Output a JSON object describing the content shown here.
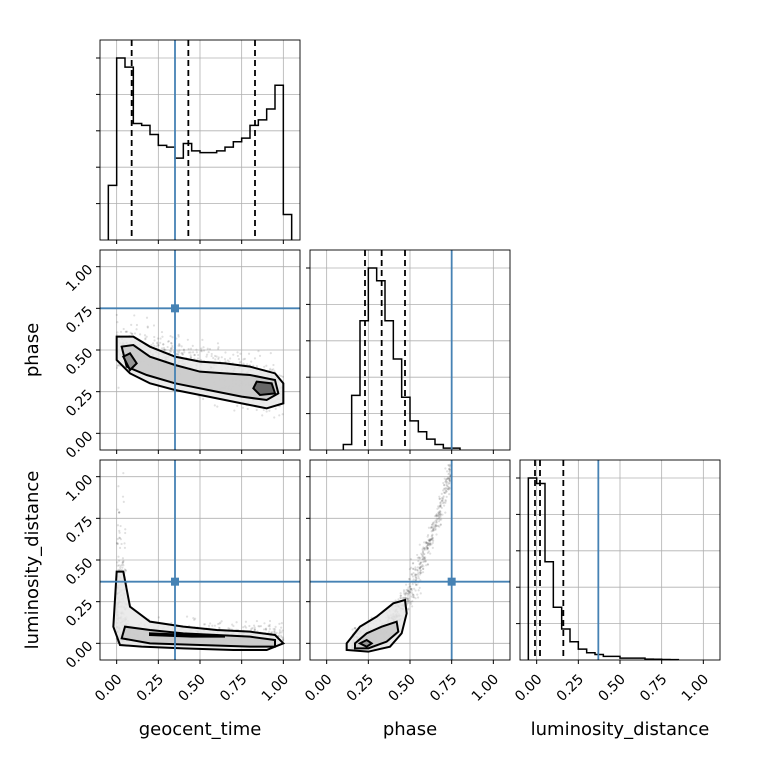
{
  "chart_data": {
    "type": "corner",
    "parameters": [
      "geocent_time",
      "phase",
      "luminosity_distance"
    ],
    "axis_range": [
      -0.1,
      1.1
    ],
    "tick_labels": [
      "0.00",
      "0.25",
      "0.50",
      "0.75",
      "1.00"
    ],
    "grid": true,
    "colors": {
      "truth": "#4682b4",
      "hist": "#000000",
      "scatter": "#000000"
    },
    "truths": {
      "geocent_time": 0.35,
      "phase": 0.75,
      "luminosity_distance": 0.37
    },
    "quantiles": {
      "geocent_time": [
        0.09,
        0.43,
        0.83
      ],
      "phase": [
        0.23,
        0.33,
        0.47
      ],
      "luminosity_distance": [
        -0.01,
        0.02,
        0.16
      ]
    },
    "histograms": {
      "geocent_time": {
        "edges": [
          -0.05,
          0.0,
          0.05,
          0.1,
          0.15,
          0.2,
          0.25,
          0.3,
          0.35,
          0.4,
          0.45,
          0.5,
          0.55,
          0.6,
          0.65,
          0.7,
          0.75,
          0.8,
          0.85,
          0.9,
          0.95,
          1.0,
          1.05
        ],
        "counts": [
          0.3,
          1.0,
          0.95,
          0.64,
          0.63,
          0.58,
          0.52,
          0.51,
          0.45,
          0.53,
          0.49,
          0.48,
          0.48,
          0.49,
          0.51,
          0.54,
          0.56,
          0.63,
          0.66,
          0.72,
          0.85,
          0.14
        ]
      },
      "phase": {
        "edges": [
          0.1,
          0.15,
          0.2,
          0.25,
          0.3,
          0.35,
          0.4,
          0.45,
          0.5,
          0.55,
          0.6,
          0.65,
          0.7,
          0.75,
          0.8
        ],
        "counts": [
          0.03,
          0.3,
          0.71,
          1.0,
          0.93,
          0.71,
          0.5,
          0.29,
          0.16,
          0.1,
          0.06,
          0.03,
          0.01,
          0.01
        ]
      },
      "luminosity_distance": {
        "edges": [
          -0.05,
          0.0,
          0.05,
          0.1,
          0.15,
          0.2,
          0.25,
          0.3,
          0.35,
          0.4,
          0.45,
          0.5,
          0.55,
          0.6,
          0.65,
          0.7,
          0.75,
          0.8,
          0.85
        ],
        "counts": [
          1.0,
          0.97,
          0.54,
          0.29,
          0.17,
          0.1,
          0.06,
          0.04,
          0.03,
          0.02,
          0.02,
          0.01,
          0.01,
          0.01,
          0.005,
          0.004,
          0.003,
          0.002
        ]
      }
    },
    "contours": {
      "phase_vs_geocent_time": [
        [
          [
            0.0,
            0.58
          ],
          [
            0.1,
            0.58
          ],
          [
            0.2,
            0.52
          ],
          [
            0.35,
            0.46
          ],
          [
            0.5,
            0.43
          ],
          [
            0.65,
            0.42
          ],
          [
            0.8,
            0.4
          ],
          [
            0.95,
            0.36
          ],
          [
            1.0,
            0.3
          ],
          [
            1.0,
            0.18
          ],
          [
            0.9,
            0.15
          ],
          [
            0.75,
            0.18
          ],
          [
            0.55,
            0.22
          ],
          [
            0.35,
            0.26
          ],
          [
            0.2,
            0.3
          ],
          [
            0.08,
            0.36
          ],
          [
            0.0,
            0.44
          ]
        ],
        [
          [
            0.03,
            0.52
          ],
          [
            0.1,
            0.53
          ],
          [
            0.2,
            0.46
          ],
          [
            0.35,
            0.41
          ],
          [
            0.5,
            0.37
          ],
          [
            0.65,
            0.36
          ],
          [
            0.8,
            0.35
          ],
          [
            0.95,
            0.32
          ],
          [
            0.97,
            0.24
          ],
          [
            0.9,
            0.2
          ],
          [
            0.75,
            0.22
          ],
          [
            0.55,
            0.26
          ],
          [
            0.35,
            0.3
          ],
          [
            0.18,
            0.35
          ],
          [
            0.06,
            0.4
          ]
        ],
        [
          [
            0.04,
            0.46
          ],
          [
            0.08,
            0.48
          ],
          [
            0.12,
            0.42
          ],
          [
            0.08,
            0.38
          ]
        ],
        [
          [
            0.84,
            0.31
          ],
          [
            0.93,
            0.3
          ],
          [
            0.95,
            0.24
          ],
          [
            0.86,
            0.23
          ],
          [
            0.82,
            0.27
          ]
        ]
      ],
      "luminosity_distance_vs_geocent_time": [
        [
          [
            0.0,
            0.43
          ],
          [
            0.04,
            0.43
          ],
          [
            0.08,
            0.22
          ],
          [
            0.2,
            0.13
          ],
          [
            0.4,
            0.1
          ],
          [
            0.6,
            0.08
          ],
          [
            0.8,
            0.07
          ],
          [
            0.95,
            0.05
          ],
          [
            1.0,
            0.0
          ],
          [
            0.9,
            -0.04
          ],
          [
            0.7,
            -0.04
          ],
          [
            0.4,
            -0.03
          ],
          [
            0.15,
            -0.02
          ],
          [
            0.02,
            -0.01
          ],
          [
            -0.02,
            0.1
          ]
        ],
        [
          [
            0.05,
            0.1
          ],
          [
            0.2,
            0.08
          ],
          [
            0.4,
            0.06
          ],
          [
            0.6,
            0.05
          ],
          [
            0.8,
            0.04
          ],
          [
            0.95,
            0.02
          ],
          [
            0.95,
            -0.02
          ],
          [
            0.8,
            -0.02
          ],
          [
            0.5,
            -0.01
          ],
          [
            0.2,
            0.0
          ],
          [
            0.03,
            0.03
          ]
        ],
        [
          [
            0.2,
            0.06
          ],
          [
            0.45,
            0.05
          ],
          [
            0.65,
            0.04
          ],
          [
            0.45,
            0.04
          ],
          [
            0.2,
            0.05
          ]
        ]
      ],
      "luminosity_distance_vs_phase": [
        [
          [
            0.12,
            0.0
          ],
          [
            0.2,
            0.1
          ],
          [
            0.3,
            0.16
          ],
          [
            0.4,
            0.24
          ],
          [
            0.47,
            0.26
          ],
          [
            0.48,
            0.18
          ],
          [
            0.45,
            0.06
          ],
          [
            0.38,
            -0.02
          ],
          [
            0.25,
            -0.05
          ],
          [
            0.12,
            -0.04
          ]
        ],
        [
          [
            0.17,
            0.0
          ],
          [
            0.24,
            0.06
          ],
          [
            0.33,
            0.1
          ],
          [
            0.42,
            0.13
          ],
          [
            0.43,
            0.07
          ],
          [
            0.36,
            0.01
          ],
          [
            0.25,
            -0.03
          ],
          [
            0.17,
            -0.03
          ]
        ],
        [
          [
            0.2,
            0.0
          ],
          [
            0.24,
            0.02
          ],
          [
            0.27,
            0.0
          ],
          [
            0.24,
            -0.02
          ]
        ]
      ]
    }
  }
}
